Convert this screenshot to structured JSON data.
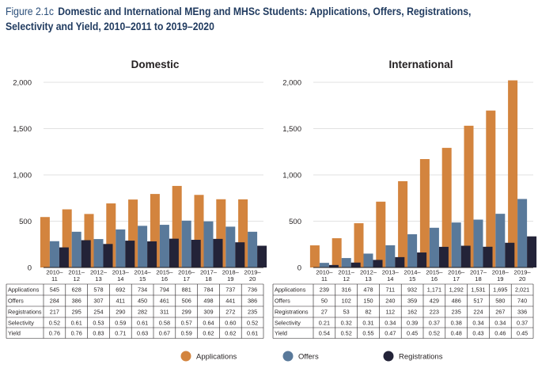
{
  "figure": {
    "number": "Figure 2.1c",
    "title_line1": "Domestic and International MEng and MHSc Students: Applications, Offers, Registrations,",
    "title_line2": "Selectivity and Yield, 2010–2011 to 2019–2020"
  },
  "colors": {
    "applications": "#d3843e",
    "offers": "#59799a",
    "registrations": "#232338",
    "grid": "#d9d9d9",
    "axis": "#231f20"
  },
  "chart_data": [
    {
      "type": "bar",
      "title": "Domestic",
      "categories": [
        [
          "2010–",
          "11"
        ],
        [
          "2011–",
          "12"
        ],
        [
          "2012–",
          "13"
        ],
        [
          "2013–",
          "14"
        ],
        [
          "2014–",
          "15"
        ],
        [
          "2015–",
          "16"
        ],
        [
          "2016–",
          "17"
        ],
        [
          "2017–",
          "18"
        ],
        [
          "2018–",
          "19"
        ],
        [
          "2019–",
          "20"
        ]
      ],
      "ylim": [
        0,
        2000
      ],
      "yticks": [
        0,
        500,
        1000,
        1500,
        2000
      ],
      "ytick_labels": [
        "0",
        "500",
        "1,000",
        "1,500",
        "2,000"
      ],
      "series": [
        {
          "name": "Applications",
          "key": "applications",
          "values": [
            545,
            628,
            578,
            692,
            734,
            794,
            881,
            784,
            737,
            736
          ],
          "labels": [
            "545",
            "628",
            "578",
            "692",
            "734",
            "794",
            "881",
            "784",
            "737",
            "736"
          ]
        },
        {
          "name": "Offers",
          "key": "offers",
          "values": [
            284,
            386,
            307,
            411,
            450,
            461,
            506,
            498,
            441,
            386
          ],
          "labels": [
            "284",
            "386",
            "307",
            "411",
            "450",
            "461",
            "506",
            "498",
            "441",
            "386"
          ]
        },
        {
          "name": "Registrations",
          "key": "registrations",
          "values": [
            217,
            295,
            254,
            290,
            282,
            311,
            299,
            309,
            272,
            235
          ],
          "labels": [
            "217",
            "295",
            "254",
            "290",
            "282",
            "311",
            "299",
            "309",
            "272",
            "235"
          ]
        }
      ],
      "table_rows": [
        {
          "label": "Applications",
          "values": [
            "545",
            "628",
            "578",
            "692",
            "734",
            "794",
            "881",
            "784",
            "737",
            "736"
          ]
        },
        {
          "label": "Offers",
          "values": [
            "284",
            "386",
            "307",
            "411",
            "450",
            "461",
            "506",
            "498",
            "441",
            "386"
          ]
        },
        {
          "label": "Registrations",
          "values": [
            "217",
            "295",
            "254",
            "290",
            "282",
            "311",
            "299",
            "309",
            "272",
            "235"
          ]
        },
        {
          "label": "Selectivity",
          "values": [
            "0.52",
            "0.61",
            "0.53",
            "0.59",
            "0.61",
            "0.58",
            "0.57",
            "0.64",
            "0.60",
            "0.52"
          ]
        },
        {
          "label": "Yield",
          "values": [
            "0.76",
            "0.76",
            "0.83",
            "0.71",
            "0.63",
            "0.67",
            "0.59",
            "0.62",
            "0.62",
            "0.61"
          ]
        }
      ]
    },
    {
      "type": "bar",
      "title": "International",
      "categories": [
        [
          "2010–",
          "11"
        ],
        [
          "2011–",
          "12"
        ],
        [
          "2012–",
          "13"
        ],
        [
          "2013–",
          "14"
        ],
        [
          "2014–",
          "15"
        ],
        [
          "2015–",
          "16"
        ],
        [
          "2016–",
          "17"
        ],
        [
          "2017–",
          "18"
        ],
        [
          "2018–",
          "19"
        ],
        [
          "2019–",
          "20"
        ]
      ],
      "ylim": [
        0,
        2000
      ],
      "yticks": [
        0,
        500,
        1000,
        1500,
        2000
      ],
      "ytick_labels": [
        "0",
        "500",
        "1,000",
        "1,500",
        "2,000"
      ],
      "series": [
        {
          "name": "Applications",
          "key": "applications",
          "values": [
            239,
            316,
            478,
            711,
            932,
            1171,
            1292,
            1531,
            1695,
            2021
          ],
          "labels": [
            "239",
            "316",
            "478",
            "711",
            "932",
            "1,171",
            "1,292",
            "1,531",
            "1,695",
            "2,021"
          ]
        },
        {
          "name": "Offers",
          "key": "offers",
          "values": [
            50,
            102,
            150,
            240,
            359,
            429,
            486,
            517,
            580,
            740
          ],
          "labels": [
            "50",
            "102",
            "150",
            "240",
            "359",
            "429",
            "486",
            "517",
            "580",
            "740"
          ]
        },
        {
          "name": "Registrations",
          "key": "registrations",
          "values": [
            27,
            53,
            82,
            112,
            162,
            223,
            235,
            224,
            267,
            336
          ],
          "labels": [
            "27",
            "53",
            "82",
            "112",
            "162",
            "223",
            "235",
            "224",
            "267",
            "336"
          ]
        }
      ],
      "table_rows": [
        {
          "label": "Applications",
          "values": [
            "239",
            "316",
            "478",
            "711",
            "932",
            "1,171",
            "1,292",
            "1,531",
            "1,695",
            "2,021"
          ]
        },
        {
          "label": "Offers",
          "values": [
            "50",
            "102",
            "150",
            "240",
            "359",
            "429",
            "486",
            "517",
            "580",
            "740"
          ]
        },
        {
          "label": "Registrations",
          "values": [
            "27",
            "53",
            "82",
            "112",
            "162",
            "223",
            "235",
            "224",
            "267",
            "336"
          ]
        },
        {
          "label": "Selectivity",
          "values": [
            "0.21",
            "0.32",
            "0.31",
            "0.34",
            "0.39",
            "0.37",
            "0.38",
            "0.34",
            "0.34",
            "0.37"
          ]
        },
        {
          "label": "Yield",
          "values": [
            "0.54",
            "0.52",
            "0.55",
            "0.47",
            "0.45",
            "0.52",
            "0.48",
            "0.43",
            "0.46",
            "0.45"
          ]
        }
      ]
    }
  ],
  "legend": [
    {
      "key": "applications",
      "label": "Applications"
    },
    {
      "key": "offers",
      "label": "Offers"
    },
    {
      "key": "registrations",
      "label": "Registrations"
    }
  ]
}
